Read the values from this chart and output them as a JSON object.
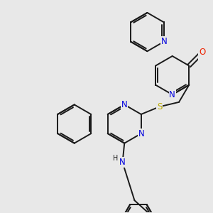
{
  "background_color": "#e8e8e8",
  "bond_color": "#1a1a1a",
  "bond_width": 1.4,
  "dbo": 0.055,
  "atom_colors": {
    "N": "#0000dd",
    "O": "#ee2200",
    "S": "#bbaa00",
    "C": "#1a1a1a",
    "H": "#1a1a1a"
  },
  "font_size": 8.5
}
